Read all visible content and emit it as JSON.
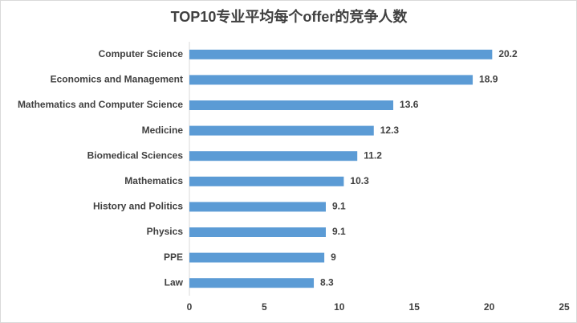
{
  "chart_data": {
    "type": "bar",
    "orientation": "horizontal",
    "title": "TOP10专业平均每个offer的竞争人数",
    "categories": [
      "Computer Science",
      "Economics and Management",
      "Mathematics and Computer Science",
      "Medicine",
      "Biomedical Sciences",
      "Mathematics",
      "History and Politics",
      "Physics",
      "PPE",
      "Law"
    ],
    "values": [
      20.2,
      18.9,
      13.6,
      12.3,
      11.2,
      10.3,
      9.1,
      9.1,
      9,
      8.3
    ],
    "color": "#5b9bd5",
    "xlim": [
      0,
      25
    ],
    "xticks": [
      0,
      5,
      10,
      15,
      20,
      25
    ],
    "grid": false
  }
}
